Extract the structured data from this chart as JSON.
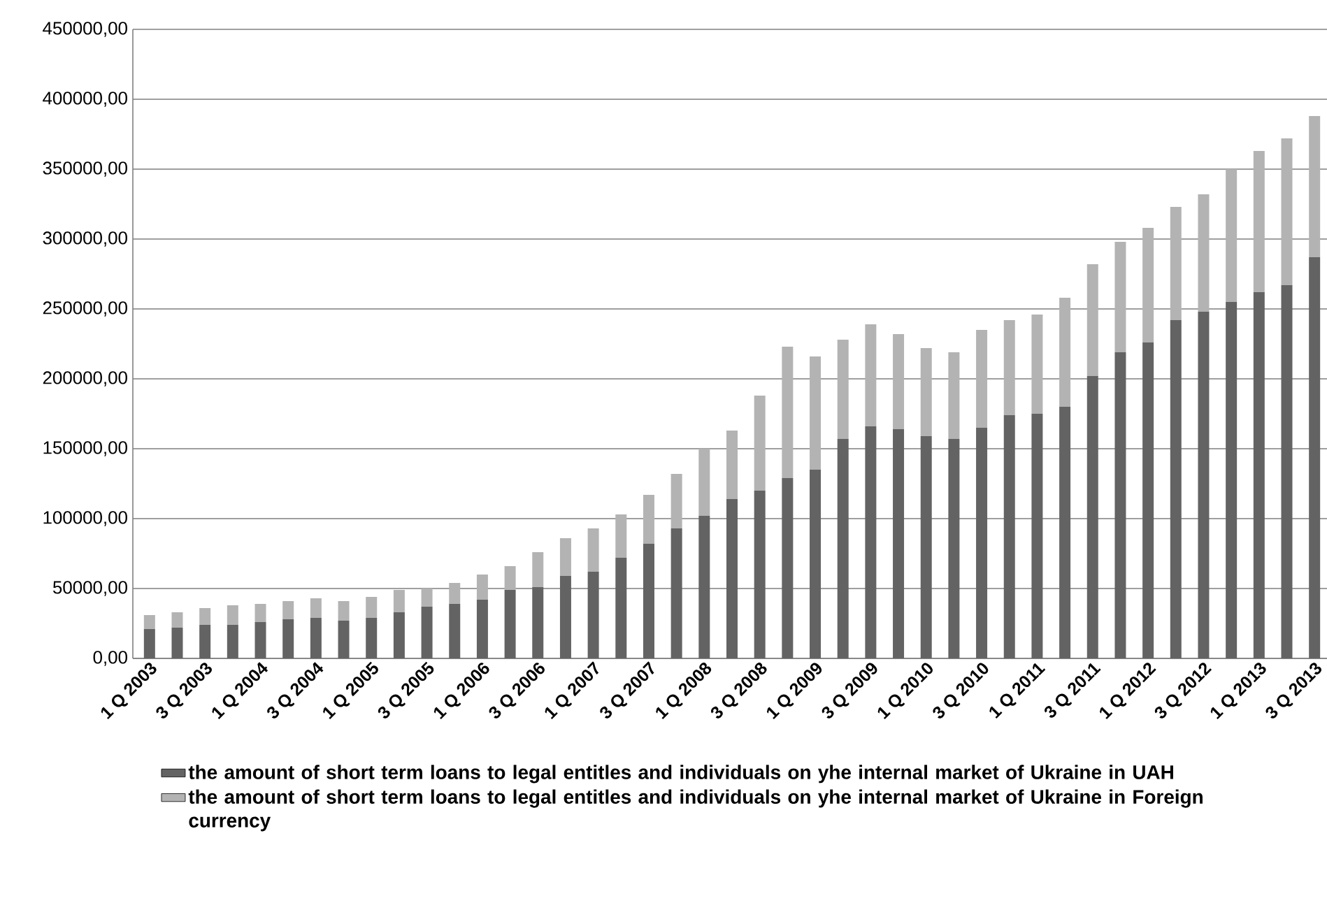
{
  "chart_data": {
    "type": "bar",
    "stacked": true,
    "categories": [
      "1 Q 2003",
      null,
      "3 Q 2003",
      null,
      "1 Q 2004",
      null,
      "3 Q 2004",
      null,
      "1 Q 2005",
      null,
      "3 Q 2005",
      null,
      "1 Q 2006",
      null,
      "3 Q 2006",
      null,
      "1 Q 2007",
      null,
      "3 Q 2007",
      null,
      "1 Q 2008",
      null,
      "3 Q 2008",
      null,
      "1 Q 2009",
      null,
      "3 Q 2009",
      null,
      "1 Q 2010",
      null,
      "3 Q 2010",
      null,
      "1 Q 2011",
      null,
      "3 Q 2011",
      null,
      "1 Q 2012",
      null,
      "3 Q 2012",
      null,
      "1 Q 2013",
      null,
      "3 Q 2013"
    ],
    "series": [
      {
        "name": "the amount of short term loans to legal entitles and individuals on yhe internal market of Ukraine in UAH",
        "color": "#636363",
        "values": [
          21000,
          22000,
          24000,
          24000,
          26000,
          28000,
          29000,
          27000,
          29000,
          33000,
          37000,
          39000,
          42000,
          49000,
          51000,
          59000,
          62000,
          72000,
          82000,
          93000,
          102000,
          114000,
          120000,
          129000,
          135000,
          157000,
          166000,
          164000,
          159000,
          157000,
          165000,
          174000,
          175000,
          180000,
          202000,
          219000,
          226000,
          242000,
          248000,
          255000,
          262000,
          267000,
          287000
        ]
      },
      {
        "name": "the amount of short term loans to legal entitles and individuals on yhe internal market of Ukraine in Foreign currency",
        "color": "#b3b3b3",
        "values": [
          10000,
          11000,
          12000,
          14000,
          13000,
          13000,
          14000,
          14000,
          15000,
          16000,
          13000,
          15000,
          18000,
          17000,
          25000,
          27000,
          31000,
          31000,
          35000,
          39000,
          48000,
          49000,
          68000,
          94000,
          81000,
          71000,
          73000,
          68000,
          63000,
          62000,
          70000,
          68000,
          71000,
          78000,
          80000,
          79000,
          82000,
          81000,
          84000,
          95000,
          101000,
          105000,
          101000
        ]
      }
    ],
    "ylim": [
      0,
      450000
    ],
    "yticks": [
      {
        "value": 0,
        "label": "0,00"
      },
      {
        "value": 50000,
        "label": "50000,00"
      },
      {
        "value": 100000,
        "label": "100000,00"
      },
      {
        "value": 150000,
        "label": "150000,00"
      },
      {
        "value": 200000,
        "label": "200000,00"
      },
      {
        "value": 250000,
        "label": "250000,00"
      },
      {
        "value": 300000,
        "label": "300000,00"
      },
      {
        "value": 350000,
        "label": "350000,00"
      },
      {
        "value": 400000,
        "label": "400000,00"
      },
      {
        "value": 450000,
        "label": "450000,00"
      }
    ],
    "grid": "y",
    "legend": "bottom"
  }
}
